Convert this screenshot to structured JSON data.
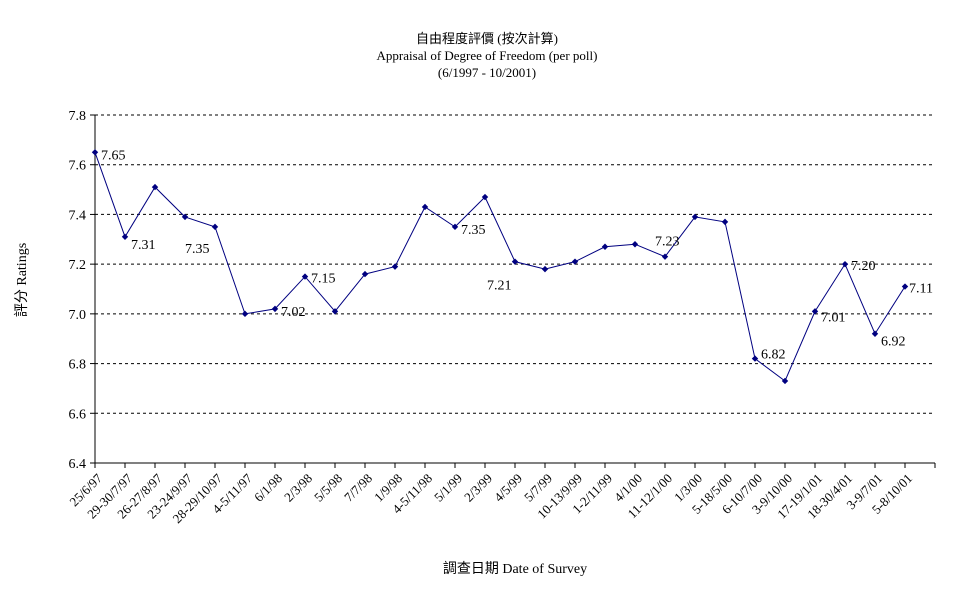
{
  "chart_data": {
    "type": "line",
    "title": "自由程度評價 (按次計算)",
    "subtitle": "Appraisal of Degree of Freedom  (per poll)",
    "subtitle2": "(6/1997 - 10/2001)",
    "ylabel": "評分 Ratings",
    "xlabel": "調查日期 Date of Survey",
    "ylim": [
      6.4,
      7.8
    ],
    "yticks": [
      "6.4",
      "6.6",
      "6.8",
      "7.0",
      "7.2",
      "7.4",
      "7.6",
      "7.8"
    ],
    "grid": true,
    "series_color": "#000080",
    "categories": [
      "25/6/97",
      "29-30/7/97",
      "26-27/8/97",
      "23-24/9/97",
      "28-29/10/97",
      "4-5/11/97",
      "6/1/98",
      "2/3/98",
      "5/5/98",
      "7/7/98",
      "1/9/98",
      "4-5/11/98",
      "5/1/99",
      "2/3/99",
      "4/5/99",
      "5/7/99",
      "10-13/9/99",
      "1-2/11/99",
      "4/1/00",
      "11-12/1/00",
      "1/3/00",
      "5-18/5/00",
      "6-10/7/00",
      "3-9/10/00",
      "17-19/1/01",
      "18-30/4/01",
      "3-9/7/01",
      "5-8/10/01"
    ],
    "series": [
      {
        "values": [
          7.65,
          7.31,
          7.51,
          7.39,
          7.35,
          7.0,
          7.02,
          7.15,
          7.01,
          7.16,
          7.19,
          7.43,
          7.35,
          7.47,
          7.21,
          7.18,
          7.21,
          7.27,
          7.28,
          7.23,
          7.39,
          7.37,
          6.82,
          6.73,
          7.01,
          7.2,
          6.92,
          7.11
        ]
      }
    ],
    "data_labels": [
      {
        "index": 0,
        "text": "7.65"
      },
      {
        "index": 1,
        "text": "7.31"
      },
      {
        "index": 4,
        "text": "7.35"
      },
      {
        "index": 6,
        "text": "7.02"
      },
      {
        "index": 7,
        "text": "7.15"
      },
      {
        "index": 12,
        "text": "7.35"
      },
      {
        "index": 14,
        "text": "7.21"
      },
      {
        "index": 19,
        "text": "7.23"
      },
      {
        "index": 22,
        "text": "6.82"
      },
      {
        "index": 24,
        "text": "7.01"
      },
      {
        "index": 25,
        "text": "7.20"
      },
      {
        "index": 26,
        "text": "6.92"
      },
      {
        "index": 27,
        "text": "7.11"
      }
    ]
  }
}
